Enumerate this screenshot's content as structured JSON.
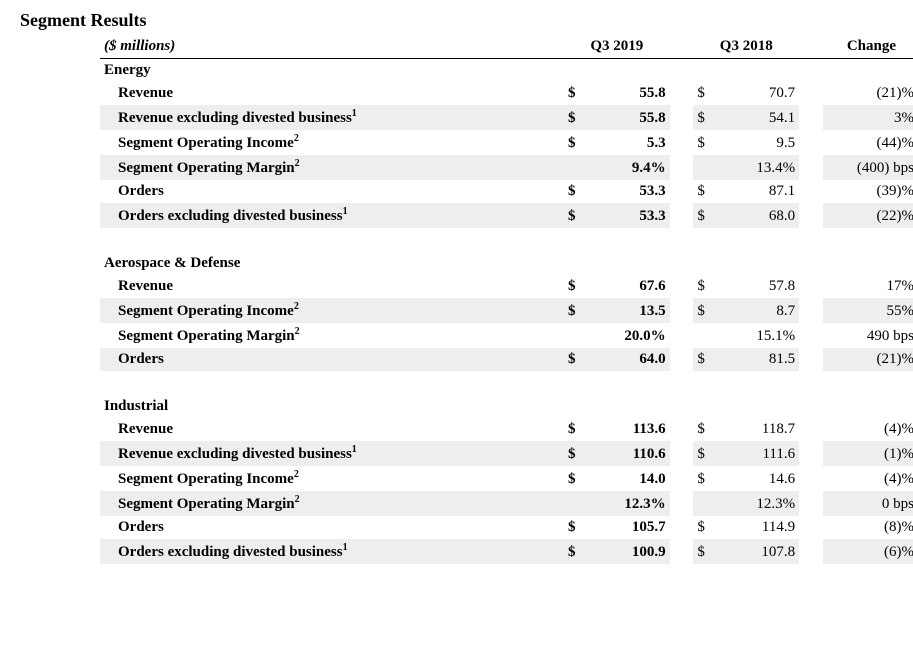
{
  "title": "Segment Results",
  "units": "($ millions)",
  "columns": {
    "q1": "Q3 2019",
    "q2": "Q3 2018",
    "chg": "Change"
  },
  "sections": [
    {
      "name": "Energy",
      "rows": [
        {
          "label": "Revenue",
          "sup": "",
          "shade": false,
          "s1": "$",
          "v1": "55.8",
          "s2": "$",
          "v2": "70.7",
          "chg": "(21)%"
        },
        {
          "label": "Revenue excluding divested business",
          "sup": "1",
          "shade": true,
          "s1": "$",
          "v1": "55.8",
          "s2": "$",
          "v2": "54.1",
          "chg": "3%"
        },
        {
          "label": "Segment Operating Income",
          "sup": "2",
          "shade": false,
          "s1": "$",
          "v1": "5.3",
          "s2": "$",
          "v2": "9.5",
          "chg": "(44)%"
        },
        {
          "label": "Segment Operating Margin",
          "sup": "2",
          "shade": true,
          "s1": "",
          "v1": "9.4%",
          "s2": "",
          "v2": "13.4%",
          "chg": "(400) bps"
        },
        {
          "label": "Orders",
          "sup": "",
          "shade": false,
          "s1": "$",
          "v1": "53.3",
          "s2": "$",
          "v2": "87.1",
          "chg": "(39)%"
        },
        {
          "label": "Orders excluding divested business",
          "sup": "1",
          "shade": true,
          "s1": "$",
          "v1": "53.3",
          "s2": "$",
          "v2": "68.0",
          "chg": "(22)%"
        }
      ]
    },
    {
      "name": "Aerospace & Defense",
      "rows": [
        {
          "label": "Revenue",
          "sup": "",
          "shade": false,
          "s1": "$",
          "v1": "67.6",
          "s2": "$",
          "v2": "57.8",
          "chg": "17%"
        },
        {
          "label": "Segment Operating Income",
          "sup": "2",
          "shade": true,
          "s1": "$",
          "v1": "13.5",
          "s2": "$",
          "v2": "8.7",
          "chg": "55%"
        },
        {
          "label": "Segment Operating Margin",
          "sup": "2",
          "shade": false,
          "s1": "",
          "v1": "20.0%",
          "s2": "",
          "v2": "15.1%",
          "chg": "490 bps"
        },
        {
          "label": "Orders",
          "sup": "",
          "shade": true,
          "s1": "$",
          "v1": "64.0",
          "s2": "$",
          "v2": "81.5",
          "chg": "(21)%"
        }
      ]
    },
    {
      "name": "Industrial",
      "rows": [
        {
          "label": "Revenue",
          "sup": "",
          "shade": false,
          "s1": "$",
          "v1": "113.6",
          "s2": "$",
          "v2": "118.7",
          "chg": "(4)%"
        },
        {
          "label": "Revenue excluding divested business",
          "sup": "1",
          "shade": true,
          "s1": "$",
          "v1": "110.6",
          "s2": "$",
          "v2": "111.6",
          "chg": "(1)%"
        },
        {
          "label": "Segment Operating Income",
          "sup": "2",
          "shade": false,
          "s1": "$",
          "v1": "14.0",
          "s2": "$",
          "v2": "14.6",
          "chg": "(4)%"
        },
        {
          "label": "Segment Operating Margin",
          "sup": "2",
          "shade": true,
          "s1": "",
          "v1": "12.3%",
          "s2": "",
          "v2": "12.3%",
          "chg": "0 bps"
        },
        {
          "label": "Orders",
          "sup": "",
          "shade": false,
          "s1": "$",
          "v1": "105.7",
          "s2": "$",
          "v2": "114.9",
          "chg": "(8)%"
        },
        {
          "label": "Orders excluding divested business",
          "sup": "1",
          "shade": true,
          "s1": "$",
          "v1": "100.9",
          "s2": "$",
          "v2": "107.8",
          "chg": "(6)%"
        }
      ]
    }
  ],
  "layout": {
    "col_widths": {
      "label": 430,
      "sym": 20,
      "val": 70,
      "chg": 90,
      "spacer": 18
    }
  }
}
